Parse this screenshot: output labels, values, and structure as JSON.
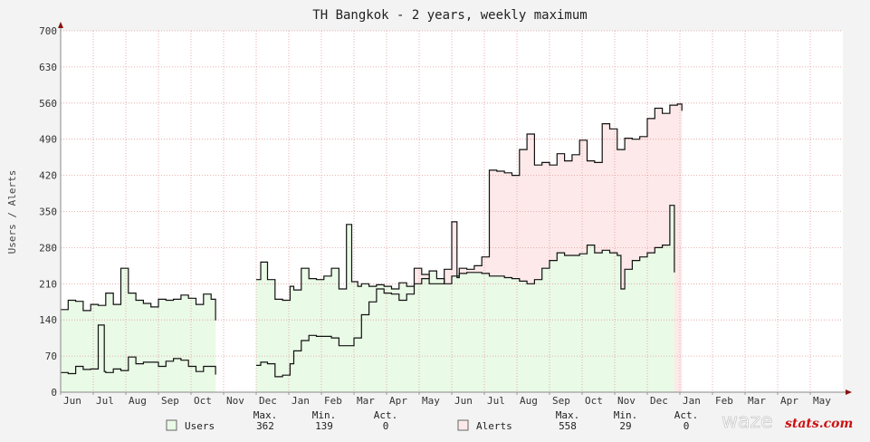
{
  "chart_data": {
    "type": "area",
    "title": "TH Bangkok - 2 years, weekly maximum",
    "xlabel": "",
    "ylabel": "Users / Alerts",
    "ylim": [
      0,
      700
    ],
    "yticks": [
      0,
      70,
      140,
      210,
      280,
      350,
      420,
      490,
      560,
      630,
      700
    ],
    "x_months": [
      "Jun",
      "Jul",
      "Aug",
      "Sep",
      "Oct",
      "Nov",
      "Dec",
      "Jan",
      "Feb",
      "Mar",
      "Apr",
      "May",
      "Jun",
      "Jul",
      "Aug",
      "Sep",
      "Oct",
      "Nov",
      "Dec",
      "Jan",
      "Feb",
      "Mar",
      "Apr",
      "May"
    ],
    "x_range_weeks": [
      0,
      104
    ],
    "grid": true,
    "series": [
      {
        "name": "Users",
        "color": "#33bb33",
        "fill": "#e9fae6",
        "stats": {
          "max": "362",
          "min": "139",
          "act": "0"
        },
        "points": [
          [
            0,
            160
          ],
          [
            1,
            178
          ],
          [
            2,
            176
          ],
          [
            3,
            158
          ],
          [
            4,
            170
          ],
          [
            5,
            168
          ],
          [
            6,
            192
          ],
          [
            7,
            170
          ],
          [
            8,
            240
          ],
          [
            9,
            192
          ],
          [
            10,
            178
          ],
          [
            11,
            172
          ],
          [
            12,
            165
          ],
          [
            13,
            180
          ],
          [
            14,
            178
          ],
          [
            15,
            180
          ],
          [
            16,
            188
          ],
          [
            17,
            182
          ],
          [
            18,
            170
          ],
          [
            19,
            190
          ],
          [
            20,
            180
          ],
          [
            20.6,
            139
          ],
          [
            26,
            218
          ],
          [
            26.6,
            252
          ],
          [
            27.5,
            218
          ],
          [
            28.5,
            180
          ],
          [
            29.5,
            178
          ],
          [
            30.5,
            205
          ],
          [
            31,
            198
          ],
          [
            32,
            240
          ],
          [
            33,
            220
          ],
          [
            34,
            218
          ],
          [
            35,
            225
          ],
          [
            36,
            240
          ],
          [
            37,
            200
          ],
          [
            37.5,
            200
          ],
          [
            38,
            325
          ],
          [
            38.7,
            214
          ],
          [
            39.5,
            205
          ],
          [
            40,
            210
          ],
          [
            41,
            205
          ],
          [
            42,
            208
          ],
          [
            43,
            205
          ],
          [
            44,
            200
          ],
          [
            45,
            212
          ],
          [
            46,
            205
          ],
          [
            47,
            210
          ],
          [
            48,
            220
          ],
          [
            49,
            235
          ],
          [
            50,
            220
          ],
          [
            51,
            210
          ],
          [
            52,
            225
          ],
          [
            53,
            230
          ],
          [
            54,
            232
          ],
          [
            55,
            232
          ],
          [
            56,
            230
          ],
          [
            57,
            225
          ],
          [
            58,
            225
          ],
          [
            59,
            222
          ],
          [
            60,
            220
          ],
          [
            61,
            215
          ],
          [
            62,
            210
          ],
          [
            63,
            218
          ],
          [
            64,
            240
          ],
          [
            65,
            255
          ],
          [
            66,
            270
          ],
          [
            67,
            265
          ],
          [
            68,
            265
          ],
          [
            69,
            268
          ],
          [
            70,
            285
          ],
          [
            71,
            270
          ],
          [
            72,
            275
          ],
          [
            73,
            270
          ],
          [
            74,
            265
          ],
          [
            74.5,
            200
          ],
          [
            75,
            238
          ],
          [
            76,
            255
          ],
          [
            77,
            262
          ],
          [
            78,
            270
          ],
          [
            79,
            280
          ],
          [
            80,
            285
          ],
          [
            81,
            362
          ],
          [
            81.6,
            232
          ]
        ]
      },
      {
        "name": "Alerts",
        "color": "#dd8888",
        "fill": "#fde9e9",
        "stats": {
          "max": "558",
          "min": "29",
          "act": "0"
        },
        "points": [
          [
            0,
            38
          ],
          [
            1,
            36
          ],
          [
            2,
            50
          ],
          [
            3,
            44
          ],
          [
            4,
            45
          ],
          [
            5,
            130
          ],
          [
            5.8,
            40
          ],
          [
            6,
            38
          ],
          [
            7,
            45
          ],
          [
            8,
            42
          ],
          [
            9,
            68
          ],
          [
            10,
            55
          ],
          [
            11,
            58
          ],
          [
            12,
            58
          ],
          [
            13,
            50
          ],
          [
            14,
            60
          ],
          [
            15,
            65
          ],
          [
            16,
            62
          ],
          [
            17,
            50
          ],
          [
            18,
            40
          ],
          [
            19,
            50
          ],
          [
            20,
            50
          ],
          [
            20.6,
            34
          ],
          [
            26,
            52
          ],
          [
            26.6,
            58
          ],
          [
            27.5,
            55
          ],
          [
            28.5,
            30
          ],
          [
            29.5,
            33
          ],
          [
            30.5,
            55
          ],
          [
            31,
            80
          ],
          [
            32,
            100
          ],
          [
            33,
            110
          ],
          [
            34,
            108
          ],
          [
            35,
            108
          ],
          [
            36,
            105
          ],
          [
            37,
            90
          ],
          [
            38,
            90
          ],
          [
            39,
            105
          ],
          [
            40,
            150
          ],
          [
            41,
            175
          ],
          [
            42,
            200
          ],
          [
            43,
            192
          ],
          [
            44,
            190
          ],
          [
            45,
            178
          ],
          [
            46,
            190
          ],
          [
            47,
            240
          ],
          [
            48,
            228
          ],
          [
            49,
            210
          ],
          [
            50,
            210
          ],
          [
            51,
            238
          ],
          [
            52,
            330
          ],
          [
            52.7,
            222
          ],
          [
            53,
            240
          ],
          [
            54,
            238
          ],
          [
            55,
            245
          ],
          [
            56,
            262
          ],
          [
            57,
            430
          ],
          [
            58,
            428
          ],
          [
            59,
            425
          ],
          [
            60,
            420
          ],
          [
            61,
            470
          ],
          [
            62,
            500
          ],
          [
            63,
            440
          ],
          [
            64,
            445
          ],
          [
            65,
            440
          ],
          [
            66,
            462
          ],
          [
            67,
            448
          ],
          [
            68,
            460
          ],
          [
            69,
            488
          ],
          [
            70,
            448
          ],
          [
            71,
            445
          ],
          [
            72,
            520
          ],
          [
            73,
            510
          ],
          [
            74,
            470
          ],
          [
            75,
            492
          ],
          [
            76,
            490
          ],
          [
            77,
            495
          ],
          [
            78,
            530
          ],
          [
            79,
            550
          ],
          [
            80,
            540
          ],
          [
            81,
            556
          ],
          [
            82,
            558
          ],
          [
            82.6,
            545
          ]
        ]
      }
    ],
    "legend": {
      "placement": "bottom",
      "headers": {
        "max": "Max.",
        "min": "Min.",
        "act": "Act."
      }
    }
  },
  "brand": {
    "part1": "waze",
    "part2": "stats.com"
  }
}
